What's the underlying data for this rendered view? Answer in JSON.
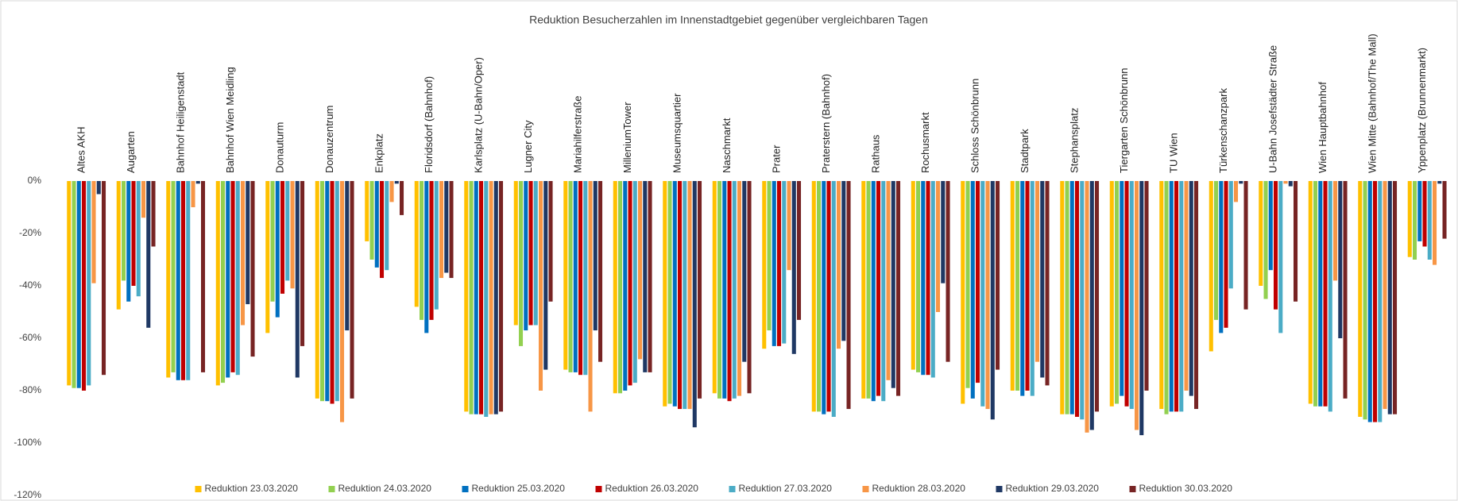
{
  "chart_data": {
    "type": "bar",
    "title": "Reduktion Besucherzahlen im Innenstadtgebiet gegenüber vergleichbaren Tagen",
    "categories": [
      "Altes AKH",
      "Augarten",
      "Bahnhof Heiligenstadt",
      "Bahnhof Wien Meidling",
      "Donauturm",
      "Donauzentrum",
      "Enkplatz",
      "Floridsdorf (Bahnhof)",
      "Karlsplatz (U-Bahn/Oper)",
      "Lugner City",
      "Mariahilferstraße",
      "MilleniumTower",
      "Museumsquartier",
      "Naschmarkt",
      "Prater",
      "Praterstern (Bahnhof)",
      "Rathaus",
      "Rochusmarkt",
      "Schloss Schönbrunn",
      "Stadtpark",
      "Stephansplatz",
      "Tiergarten Schönbrunn",
      "TU Wien",
      "Türkenschanzpark",
      "U-Bahn Josefstädter Straße",
      "Wien Hauptbahnhof",
      "Wien Mitte (Bahnhof/The Mall)",
      "Yppenplatz (Brunnenmarkt)"
    ],
    "series": [
      {
        "name": "Reduktion 23.03.2020",
        "color": "#ffc000",
        "values": [
          -78,
          -49,
          -75,
          -78,
          -58,
          -83,
          -23,
          -48,
          -88,
          -55,
          -72,
          -81,
          -86,
          -81,
          -64,
          -88,
          -83,
          -72,
          -85,
          -80,
          -89,
          -86,
          -87,
          -65,
          -40,
          -85,
          -90,
          -29
        ]
      },
      {
        "name": "Reduktion 24.03.2020",
        "color": "#92d050",
        "values": [
          -79,
          -38,
          -73,
          -77,
          -46,
          -84,
          -30,
          -53,
          -89,
          -63,
          -73,
          -81,
          -85,
          -83,
          -57,
          -88,
          -83,
          -73,
          -79,
          -80,
          -89,
          -85,
          -89,
          -53,
          -45,
          -86,
          -91,
          -30
        ]
      },
      {
        "name": "Reduktion 25.03.2020",
        "color": "#0070c0",
        "values": [
          -79,
          -46,
          -76,
          -75,
          -52,
          -84,
          -33,
          -58,
          -89,
          -57,
          -73,
          -80,
          -86,
          -83,
          -63,
          -89,
          -84,
          -74,
          -83,
          -82,
          -89,
          -82,
          -88,
          -58,
          -34,
          -86,
          -92,
          -23
        ]
      },
      {
        "name": "Reduktion 26.03.2020",
        "color": "#c00000",
        "values": [
          -80,
          -40,
          -76,
          -73,
          -43,
          -85,
          -37,
          -53,
          -89,
          -55,
          -74,
          -78,
          -87,
          -84,
          -63,
          -88,
          -82,
          -74,
          -77,
          -80,
          -90,
          -86,
          -88,
          -56,
          -49,
          -86,
          -92,
          -25
        ]
      },
      {
        "name": "Reduktion 27.03.2020",
        "color": "#4bacc6",
        "values": [
          -78,
          -44,
          -76,
          -74,
          -38,
          -84,
          -34,
          -49,
          -90,
          -55,
          -74,
          -77,
          -87,
          -83,
          -62,
          -90,
          -84,
          -75,
          -86,
          -82,
          -91,
          -87,
          -88,
          -41,
          -58,
          -88,
          -92,
          -30
        ]
      },
      {
        "name": "Reduktion 28.03.2020",
        "color": "#f79646",
        "values": [
          -39,
          -14,
          -10,
          -55,
          -41,
          -92,
          -8,
          -37,
          -89,
          -80,
          -88,
          -68,
          -87,
          -82,
          -34,
          -64,
          -76,
          -50,
          -87,
          -69,
          -96,
          -95,
          -80,
          -8,
          -1,
          -38,
          -87,
          -32
        ]
      },
      {
        "name": "Reduktion 29.03.2020",
        "color": "#1f3864",
        "values": [
          -5,
          -56,
          -1,
          -47,
          -75,
          -57,
          -1,
          -35,
          -89,
          -72,
          -57,
          -73,
          -94,
          -69,
          -66,
          -61,
          -79,
          -39,
          -91,
          -75,
          -95,
          -97,
          -82,
          -1,
          -2,
          -60,
          -89,
          -1
        ]
      },
      {
        "name": "Reduktion 30.03.2020",
        "color": "#772424",
        "values": [
          -74,
          -25,
          -73,
          -67,
          -63,
          -83,
          -13,
          -37,
          -88,
          -46,
          -69,
          -73,
          -83,
          -81,
          -53,
          -87,
          -82,
          -69,
          -72,
          -78,
          -88,
          -80,
          -87,
          -49,
          -46,
          -83,
          -89,
          -22
        ]
      }
    ],
    "ylim": [
      -120,
      0
    ],
    "yticks": [
      {
        "value": 0,
        "label": "0%"
      },
      {
        "value": -20,
        "label": "-20%"
      },
      {
        "value": -40,
        "label": "-40%"
      },
      {
        "value": -60,
        "label": "-60%"
      },
      {
        "value": -80,
        "label": "-80%"
      },
      {
        "value": -100,
        "label": "-100%"
      },
      {
        "value": -120,
        "label": "-120%"
      }
    ],
    "legend": "bottom"
  }
}
